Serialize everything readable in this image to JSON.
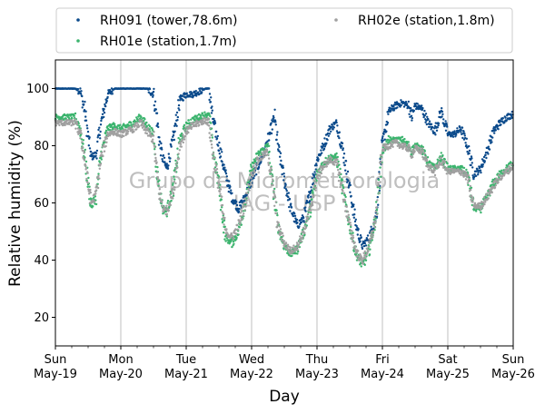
{
  "chart_data": {
    "type": "scatter",
    "title": "",
    "xlabel": "Day",
    "ylabel": "Relative humidity (%)",
    "ylim": [
      10,
      110
    ],
    "yticks": [
      20,
      40,
      60,
      80,
      100
    ],
    "xlim_days": [
      0,
      7
    ],
    "xticks": [
      {
        "day": 0,
        "weekday": "Sun",
        "date": "May-19"
      },
      {
        "day": 1,
        "weekday": "Mon",
        "date": "May-20"
      },
      {
        "day": 2,
        "weekday": "Tue",
        "date": "May-21"
      },
      {
        "day": 3,
        "weekday": "Wed",
        "date": "May-22"
      },
      {
        "day": 4,
        "weekday": "Thu",
        "date": "May-23"
      },
      {
        "day": 5,
        "weekday": "Fri",
        "date": "May-24"
      },
      {
        "day": 6,
        "weekday": "Sat",
        "date": "May-25"
      },
      {
        "day": 7,
        "weekday": "Sun",
        "date": "May-26"
      }
    ],
    "grid": "vertical",
    "legend_position": "top",
    "watermark": [
      "Grupo de Micrometeorologia",
      "IAG - USP"
    ],
    "series": [
      {
        "name": "RH091 (tower,78.6m)",
        "color": "#0b4a8b",
        "x": [
          0.0,
          0.3,
          0.38,
          0.45,
          0.5,
          0.55,
          0.62,
          0.7,
          0.8,
          0.9,
          1.0,
          1.1,
          1.2,
          1.3,
          1.4,
          1.5,
          1.55,
          1.6,
          1.65,
          1.7,
          1.8,
          1.9,
          2.0,
          2.1,
          2.2,
          2.3,
          2.35,
          2.4,
          2.5,
          2.6,
          2.7,
          2.8,
          2.9,
          3.0,
          3.1,
          3.2,
          3.25,
          3.3,
          3.35,
          3.4,
          3.5,
          3.6,
          3.7,
          3.8,
          3.9,
          4.0,
          4.1,
          4.2,
          4.3,
          4.4,
          4.5,
          4.6,
          4.65,
          4.7,
          4.8,
          4.9,
          5.0,
          5.1,
          5.2,
          5.3,
          5.4,
          5.45,
          5.5,
          5.6,
          5.7,
          5.8,
          5.9,
          6.0,
          6.1,
          6.2,
          6.3,
          6.35,
          6.4,
          6.5,
          6.6,
          6.7,
          6.8,
          6.9,
          7.0
        ],
        "y": [
          100,
          100,
          99,
          92,
          83,
          76,
          77,
          88,
          98,
          100,
          100,
          100,
          100,
          100,
          100,
          98,
          90,
          80,
          75,
          72,
          82,
          96,
          98,
          98,
          99,
          100,
          100,
          90,
          80,
          70,
          62,
          58,
          62,
          68,
          73,
          78,
          82,
          86,
          90,
          80,
          68,
          58,
          52,
          55,
          64,
          75,
          80,
          86,
          88,
          78,
          65,
          52,
          48,
          45,
          48,
          55,
          80,
          92,
          94,
          95,
          94,
          90,
          94,
          93,
          88,
          85,
          92,
          84,
          84,
          86,
          80,
          75,
          70,
          72,
          78,
          85,
          88,
          90,
          91
        ]
      },
      {
        "name": "RH01e (station,1.7m)",
        "color": "#3cb46e",
        "x": [
          0.0,
          0.3,
          0.38,
          0.45,
          0.5,
          0.55,
          0.62,
          0.7,
          0.8,
          0.9,
          1.0,
          1.1,
          1.2,
          1.3,
          1.4,
          1.5,
          1.55,
          1.6,
          1.65,
          1.7,
          1.8,
          1.9,
          2.0,
          2.1,
          2.2,
          2.3,
          2.35,
          2.4,
          2.5,
          2.6,
          2.7,
          2.8,
          2.9,
          3.0,
          3.1,
          3.2,
          3.25,
          3.3,
          3.35,
          3.4,
          3.5,
          3.6,
          3.7,
          3.8,
          3.9,
          4.0,
          4.1,
          4.2,
          4.3,
          4.4,
          4.5,
          4.6,
          4.65,
          4.7,
          4.8,
          4.9,
          5.0,
          5.1,
          5.2,
          5.3,
          5.4,
          5.45,
          5.5,
          5.6,
          5.7,
          5.8,
          5.9,
          6.0,
          6.1,
          6.2,
          6.3,
          6.35,
          6.4,
          6.5,
          6.6,
          6.7,
          6.8,
          6.9,
          7.0
        ],
        "y": [
          90,
          90,
          86,
          76,
          67,
          59,
          62,
          77,
          86,
          87,
          86,
          87,
          88,
          90,
          87,
          84,
          72,
          63,
          58,
          57,
          65,
          82,
          87,
          89,
          90,
          91,
          90,
          80,
          66,
          48,
          46,
          50,
          60,
          72,
          77,
          79,
          80,
          70,
          62,
          52,
          45,
          42,
          44,
          50,
          58,
          70,
          74,
          76,
          76,
          64,
          52,
          42,
          40,
          38,
          44,
          55,
          78,
          82,
          82,
          82,
          80,
          78,
          80,
          79,
          74,
          72,
          76,
          72,
          72,
          72,
          70,
          64,
          58,
          58,
          62,
          67,
          70,
          72,
          74
        ]
      },
      {
        "name": "RH02e (station,1.8m)",
        "color": "#a0a0a0",
        "x": [
          0.0,
          0.3,
          0.38,
          0.45,
          0.5,
          0.55,
          0.62,
          0.7,
          0.8,
          0.9,
          1.0,
          1.1,
          1.2,
          1.3,
          1.4,
          1.5,
          1.55,
          1.6,
          1.65,
          1.7,
          1.8,
          1.9,
          2.0,
          2.1,
          2.2,
          2.3,
          2.35,
          2.4,
          2.5,
          2.6,
          2.7,
          2.8,
          2.9,
          3.0,
          3.1,
          3.2,
          3.25,
          3.3,
          3.35,
          3.4,
          3.5,
          3.6,
          3.7,
          3.8,
          3.9,
          4.0,
          4.1,
          4.2,
          4.3,
          4.4,
          4.5,
          4.6,
          4.65,
          4.7,
          4.8,
          4.9,
          5.0,
          5.1,
          5.2,
          5.3,
          5.4,
          5.45,
          5.5,
          5.6,
          5.7,
          5.8,
          5.9,
          6.0,
          6.1,
          6.2,
          6.3,
          6.35,
          6.4,
          6.5,
          6.6,
          6.7,
          6.8,
          6.9,
          7.0
        ],
        "y": [
          88,
          88,
          84,
          75,
          66,
          60,
          63,
          76,
          84,
          85,
          84,
          85,
          86,
          88,
          85,
          82,
          71,
          62,
          58,
          57,
          64,
          80,
          85,
          87,
          88,
          89,
          88,
          78,
          66,
          50,
          48,
          52,
          60,
          70,
          75,
          77,
          78,
          69,
          61,
          52,
          46,
          43,
          45,
          50,
          58,
          69,
          73,
          75,
          74,
          63,
          52,
          43,
          41,
          40,
          45,
          55,
          79,
          80,
          81,
          80,
          79,
          77,
          79,
          78,
          73,
          71,
          75,
          71,
          71,
          71,
          69,
          63,
          59,
          59,
          62,
          66,
          69,
          71,
          73
        ]
      }
    ]
  }
}
